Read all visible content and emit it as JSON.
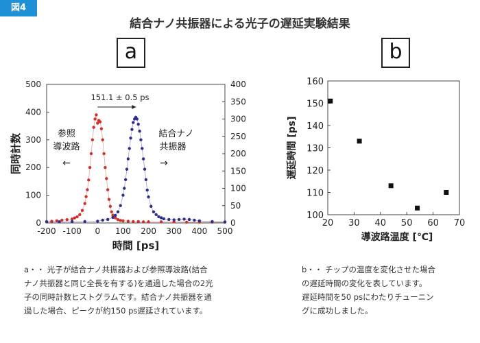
{
  "figure_tag": "図4",
  "title": "結合ナノ共振器による光子の遅延実験結果",
  "panels": {
    "a_label": "a",
    "b_label": "b"
  },
  "captions": {
    "a": [
      "a・・ 光子が結合ナノ共振器および参照導波路(結合",
      "ナノ共振器と同じ全長を有する)を通過した場合の2光",
      "子の同時計数ヒストグラムです。結合ナノ共振器を通",
      "過した場合、ピークが約150 ps遅延されています。"
    ],
    "b": [
      "b・・ チップの温度を変化させた場合",
      "の遅延時間の変化を表しています。",
      "遅延時間を50 psにわたりチューニン",
      "グに成功しました。"
    ]
  },
  "chart_data": [
    {
      "type": "scatter",
      "title": "",
      "xlabel": "時間 [ps]",
      "ylabel": "同時計数",
      "xlim": [
        -200,
        500
      ],
      "ylim": [
        0,
        500
      ],
      "y2lim": [
        0,
        400
      ],
      "xticks": [
        "-200",
        "-100",
        "0",
        "100",
        "200",
        "300",
        "400",
        "500"
      ],
      "yticks": [
        "0",
        "100",
        "200",
        "300",
        "400",
        "500"
      ],
      "y2ticks": [
        "0",
        "50",
        "100",
        "150",
        "200",
        "250",
        "300",
        "350",
        "400"
      ],
      "annotations": {
        "delay": "151.1 ± 0.5 ps",
        "reference_label_1": "参照",
        "reference_label_2": "導波路",
        "coupled_label_1": "結合ナノ",
        "coupled_label_2": "共振器",
        "arrow_left": "←",
        "arrow_right": "→"
      },
      "series": [
        {
          "name": "参照導波路",
          "color": "#d0302a",
          "axis": "left",
          "x": [
            -200,
            -180,
            -160,
            -140,
            -120,
            -100,
            -90,
            -80,
            -70,
            -60,
            -50,
            -45,
            -40,
            -35,
            -30,
            -25,
            -20,
            -15,
            -10,
            -5,
            0,
            5,
            10,
            15,
            20,
            25,
            30,
            35,
            40,
            45,
            50,
            55,
            60,
            70,
            80,
            90,
            100,
            120,
            140,
            160,
            180,
            200,
            250,
            300,
            350,
            400,
            450,
            500
          ],
          "y": [
            5,
            6,
            8,
            10,
            12,
            14,
            18,
            22,
            30,
            45,
            70,
            95,
            120,
            155,
            200,
            250,
            300,
            345,
            375,
            390,
            360,
            370,
            365,
            340,
            300,
            250,
            200,
            160,
            120,
            85,
            60,
            40,
            28,
            18,
            12,
            9,
            8,
            6,
            5,
            5,
            4,
            4,
            4,
            4,
            3,
            3,
            3,
            3
          ]
        },
        {
          "name": "結合ナノ共振器",
          "color": "#2e2e8f",
          "axis": "right",
          "x": [
            -200,
            -150,
            -100,
            -50,
            0,
            20,
            40,
            60,
            70,
            80,
            90,
            100,
            105,
            110,
            115,
            120,
            125,
            130,
            135,
            140,
            145,
            150,
            155,
            160,
            165,
            170,
            175,
            180,
            185,
            190,
            195,
            200,
            210,
            220,
            230,
            240,
            250,
            260,
            280,
            300,
            320,
            340,
            360,
            380,
            400,
            450,
            500
          ],
          "y": [
            3,
            3,
            4,
            4,
            5,
            8,
            10,
            16,
            22,
            32,
            50,
            80,
            100,
            125,
            155,
            185,
            215,
            245,
            270,
            290,
            300,
            305,
            300,
            285,
            265,
            240,
            215,
            185,
            155,
            125,
            95,
            75,
            48,
            32,
            24,
            18,
            15,
            12,
            10,
            9,
            10,
            11,
            10,
            8,
            6,
            4,
            3
          ]
        }
      ]
    },
    {
      "type": "scatter",
      "title": "",
      "xlabel": "導波路温度 [℃]",
      "ylabel": "遅延時間 [ps]",
      "xlim": [
        20,
        70
      ],
      "ylim": [
        100,
        160
      ],
      "xticks": [
        "20",
        "30",
        "40",
        "50",
        "60",
        "70"
      ],
      "yticks": [
        "100",
        "110",
        "120",
        "130",
        "140",
        "150",
        "160"
      ],
      "series": [
        {
          "name": "",
          "color": "#111111",
          "x": [
            21,
            32,
            44,
            54,
            65
          ],
          "y": [
            151,
            133,
            113,
            103,
            110
          ]
        }
      ]
    }
  ]
}
